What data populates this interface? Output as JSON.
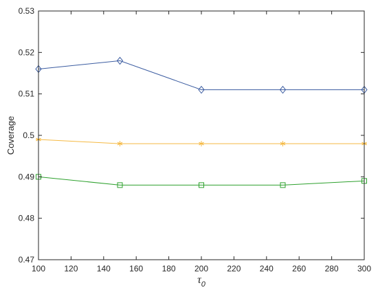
{
  "chart_data": {
    "type": "line",
    "title": "",
    "xlabel": {
      "symbol": "τ",
      "subscript": "0"
    },
    "ylabel": "Coverage",
    "xlim": [
      100,
      300
    ],
    "ylim": [
      0.47,
      0.53
    ],
    "xticks": [
      100,
      120,
      140,
      160,
      180,
      200,
      220,
      240,
      260,
      280,
      300
    ],
    "yticks": [
      0.47,
      0.48,
      0.49,
      0.5,
      0.51,
      0.52,
      0.53
    ],
    "grid": false,
    "legend": "none",
    "x": [
      100,
      150,
      200,
      250,
      300
    ],
    "series": [
      {
        "marker": "diamond",
        "color": "#3a5ba0",
        "values": [
          0.516,
          0.518,
          0.511,
          0.511,
          0.511
        ]
      },
      {
        "marker": "asterisk",
        "color": "#f5b942",
        "values": [
          0.499,
          0.498,
          0.498,
          0.498,
          0.498
        ]
      },
      {
        "marker": "square",
        "color": "#2ca02c",
        "values": [
          0.49,
          0.488,
          0.488,
          0.488,
          0.489
        ]
      }
    ]
  }
}
